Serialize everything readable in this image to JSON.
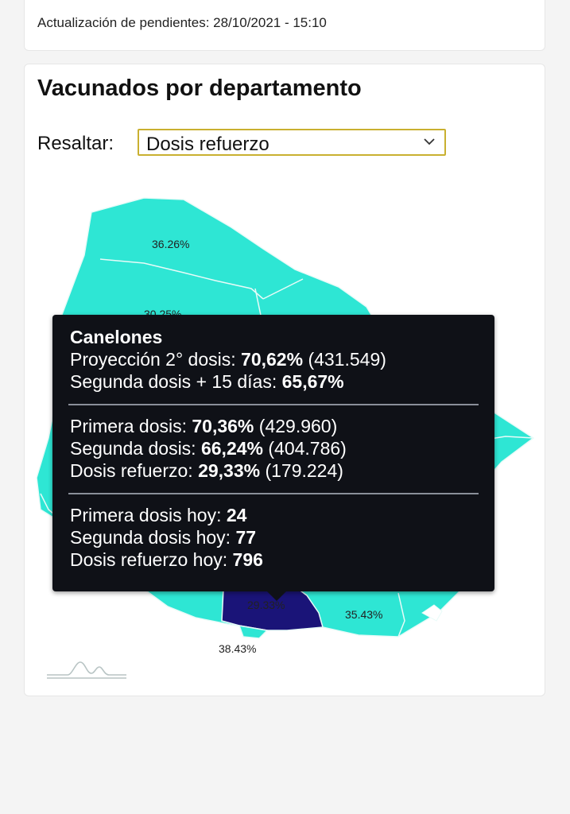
{
  "header": {
    "update_label": "Actualización de pendientes: 28/10/2021 - 15:10"
  },
  "section": {
    "title": "Vacunados por departamento"
  },
  "filter": {
    "label": "Resaltar:",
    "selected": "Dosis refuerzo"
  },
  "map": {
    "region_colors": {
      "default": "#2ee6d4",
      "highlighted": "#1a1478",
      "border": "#e8fbf8"
    },
    "labels": {
      "north": "36.26%",
      "upper_west": "30.25%",
      "canelones": "29.33%",
      "east": "35.43%",
      "south": "38.43%"
    }
  },
  "tooltip": {
    "department": "Canelones",
    "proyeccion_label": "Proyección 2° dosis:",
    "proyeccion_pct": "70,62%",
    "proyeccion_count": "(431.549)",
    "segunda15_label": "Segunda dosis + 15 días:",
    "segunda15_pct": "65,67%",
    "primera_label": "Primera dosis:",
    "primera_pct": "70,36%",
    "primera_count": "(429.960)",
    "segunda_label": "Segunda dosis:",
    "segunda_pct": "66,24%",
    "segunda_count": "(404.786)",
    "refuerzo_label": "Dosis refuerzo:",
    "refuerzo_pct": "29,33%",
    "refuerzo_count": "(179.224)",
    "primera_hoy_label": "Primera dosis hoy:",
    "primera_hoy": "24",
    "segunda_hoy_label": "Segunda dosis hoy:",
    "segunda_hoy": "77",
    "refuerzo_hoy_label": "Dosis refuerzo hoy:",
    "refuerzo_hoy": "796"
  }
}
